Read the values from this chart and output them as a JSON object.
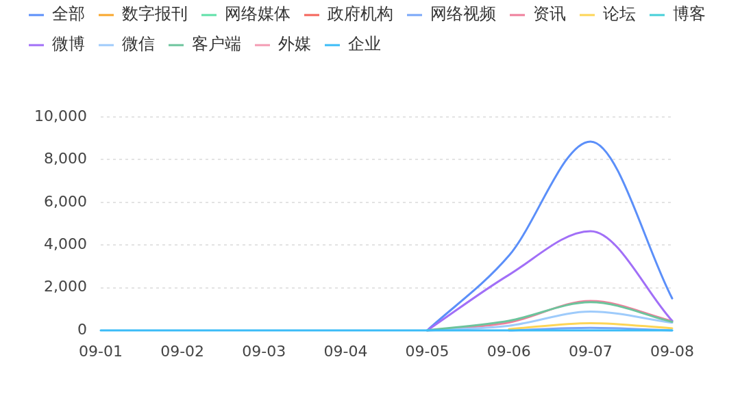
{
  "chart_data": {
    "type": "line",
    "categories": [
      "09-01",
      "09-02",
      "09-03",
      "09-04",
      "09-05",
      "09-06",
      "09-07",
      "09-08"
    ],
    "series": [
      {
        "name": "全部",
        "color": "#5b8ff9",
        "values": [
          null,
          null,
          null,
          null,
          0,
          3500,
          8850,
          1500
        ]
      },
      {
        "name": "数字报刊",
        "color": "#f8a72b",
        "values": [
          null,
          null,
          null,
          null,
          null,
          null,
          null,
          null
        ]
      },
      {
        "name": "网络媒体",
        "color": "#5ee0a8",
        "values": [
          null,
          null,
          null,
          null,
          null,
          null,
          null,
          null
        ]
      },
      {
        "name": "政府机构",
        "color": "#f4645a",
        "values": [
          null,
          null,
          null,
          null,
          null,
          null,
          null,
          null
        ]
      },
      {
        "name": "网络视频",
        "color": "#78a6f8",
        "values": [
          null,
          null,
          null,
          null,
          null,
          0,
          120,
          0
        ]
      },
      {
        "name": "资讯",
        "color": "#ef7e9b",
        "values": [
          null,
          null,
          null,
          null,
          0,
          370,
          1380,
          440
        ]
      },
      {
        "name": "论坛",
        "color": "#fdd556",
        "values": [
          null,
          null,
          null,
          null,
          null,
          60,
          340,
          100
        ]
      },
      {
        "name": "博客",
        "color": "#45cfd8",
        "values": [
          null,
          null,
          null,
          null,
          null,
          null,
          null,
          null
        ]
      },
      {
        "name": "微博",
        "color": "#a16ff7",
        "values": [
          null,
          null,
          null,
          null,
          0,
          2600,
          4650,
          450
        ]
      },
      {
        "name": "微信",
        "color": "#9ecbfb",
        "values": [
          null,
          null,
          null,
          null,
          0,
          220,
          880,
          360
        ]
      },
      {
        "name": "客户端",
        "color": "#6cc49c",
        "values": [
          null,
          null,
          null,
          null,
          0,
          450,
          1320,
          400
        ]
      },
      {
        "name": "外媒",
        "color": "#f49bb3",
        "values": [
          null,
          null,
          null,
          null,
          null,
          null,
          null,
          null
        ]
      },
      {
        "name": "企业",
        "color": "#3bbcf7",
        "values": [
          0,
          0,
          0,
          0,
          0,
          0,
          0,
          0
        ]
      }
    ],
    "ylim": [
      0,
      10000
    ],
    "yticks": [
      0,
      {
        "value": 2000,
        "label": "2,000"
      },
      {
        "value": 4000,
        "label": "4,000"
      },
      {
        "value": 6000,
        "label": "6,000"
      },
      {
        "value": 8000,
        "label": "8,000"
      },
      {
        "value": 10000,
        "label": "10,000"
      }
    ],
    "grid": "y",
    "legend": "top left",
    "marker": "none",
    "line_style": "solid"
  }
}
